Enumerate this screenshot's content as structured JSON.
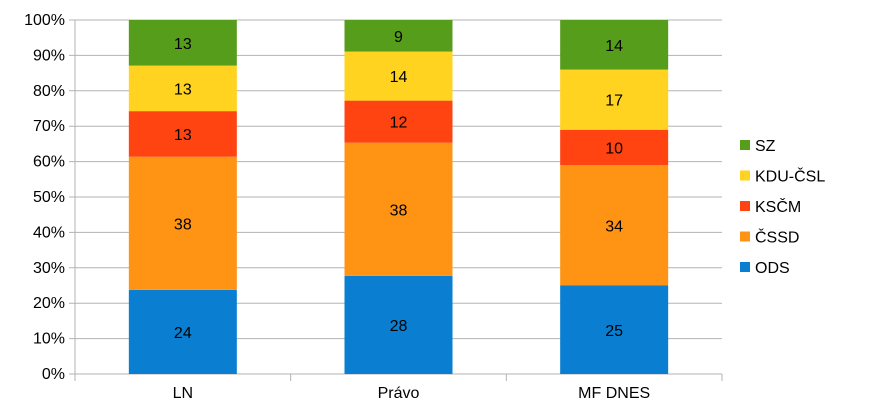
{
  "chart_data": {
    "type": "bar",
    "stacked": true,
    "percent": true,
    "title": "",
    "xlabel": "",
    "ylabel": "",
    "ylim": [
      0,
      100
    ],
    "yticks": [
      "0%",
      "10%",
      "20%",
      "30%",
      "40%",
      "50%",
      "60%",
      "70%",
      "80%",
      "90%",
      "100%"
    ],
    "grid": true,
    "legend_position": "right",
    "categories": [
      "LN",
      "Právo",
      "MF DNES"
    ],
    "series": [
      {
        "name": "ODS",
        "color": "#0a7fd1",
        "values": [
          24,
          28,
          25
        ]
      },
      {
        "name": "ČSSD",
        "color": "#ff9414",
        "values": [
          38,
          38,
          34
        ]
      },
      {
        "name": "KSČM",
        "color": "#ff4411",
        "values": [
          13,
          12,
          10
        ]
      },
      {
        "name": "KDU-ČSL",
        "color": "#ffd320",
        "values": [
          13,
          14,
          17
        ]
      },
      {
        "name": "SZ",
        "color": "#579d1c",
        "values": [
          13,
          9,
          14
        ]
      }
    ]
  }
}
